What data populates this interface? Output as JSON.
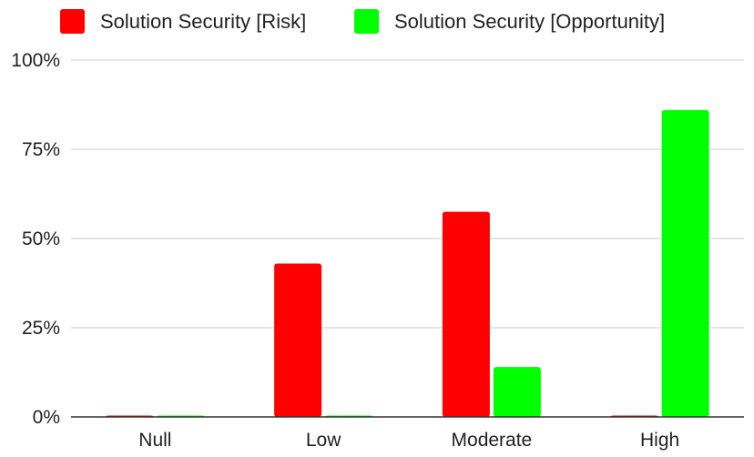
{
  "chart_data": {
    "type": "bar",
    "title": "",
    "xlabel": "",
    "ylabel": "",
    "categories": [
      "Null",
      "Low",
      "Moderate",
      "High"
    ],
    "series": [
      {
        "name": "Solution Security [Risk]",
        "color": "#ff0000",
        "values": [
          0,
          43,
          57.5,
          0
        ]
      },
      {
        "name": "Solution Security [Opportunity]",
        "color": "#00ff00",
        "values": [
          0,
          0,
          14,
          86
        ]
      }
    ],
    "ylim": [
      0,
      100
    ],
    "yticks": [
      0,
      25,
      50,
      75,
      100
    ],
    "ytick_labels": [
      "0%",
      "25%",
      "50%",
      "75%",
      "100%"
    ],
    "grid": true,
    "legend_position": "top-left"
  }
}
